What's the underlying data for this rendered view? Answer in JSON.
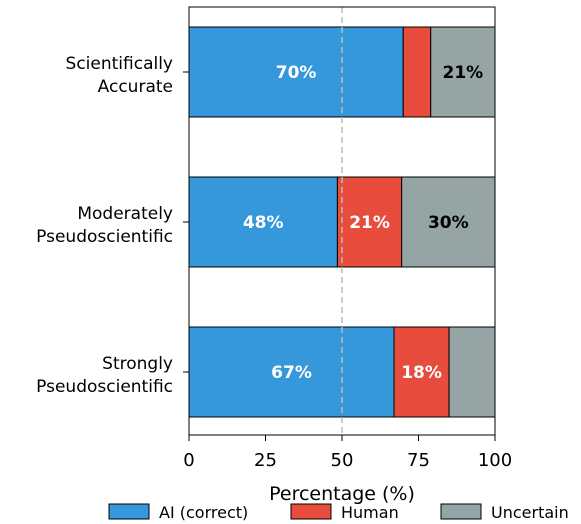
{
  "chart_data": {
    "type": "bar",
    "orientation": "horizontal",
    "stacked": true,
    "categories": [
      [
        "Scientifically",
        "Accurate"
      ],
      [
        "Moderately",
        "Pseudoscientific"
      ],
      [
        "Strongly",
        "Pseudoscientific"
      ]
    ],
    "series": [
      {
        "name": "AI (correct)",
        "color": "#3498db",
        "label_color": "#ffffff",
        "values": [
          70,
          48.5,
          67
        ],
        "labels": [
          "70%",
          "48%",
          "67%"
        ]
      },
      {
        "name": "Human",
        "color": "#e74c3c",
        "label_color": "#ffffff",
        "values": [
          9,
          21,
          18
        ],
        "labels": [
          "",
          "21%",
          "18%"
        ]
      },
      {
        "name": "Uncertain",
        "color": "#95a5a6",
        "label_color": "#000000",
        "values": [
          21,
          30.5,
          15
        ],
        "labels": [
          "21%",
          "30%",
          ""
        ]
      }
    ],
    "xlabel": "Percentage (%)",
    "ylabel": "",
    "xlim": [
      0,
      100
    ],
    "xticks": [
      0,
      25,
      50,
      75,
      100
    ],
    "reference_line": {
      "x": 50,
      "style": "dashed",
      "color": "#bbbbbb"
    },
    "legend_position": "bottom"
  }
}
